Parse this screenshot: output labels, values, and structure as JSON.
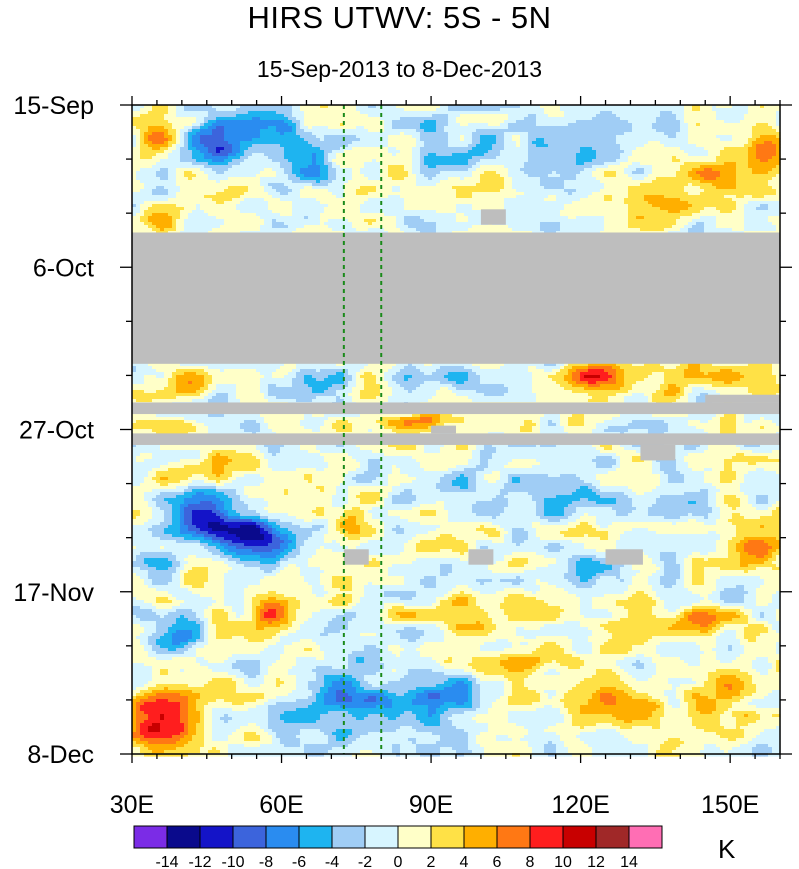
{
  "chart_data": {
    "type": "heatmap",
    "title": "HIRS UTWV: 5S - 5N",
    "subtitle": "15-Sep-2013 to 8-Dec-2013",
    "xlabel": "",
    "ylabel": "",
    "x_range": [
      30,
      160
    ],
    "x_ticks": [
      30,
      60,
      90,
      120,
      150
    ],
    "x_tick_labels": [
      "30E",
      "60E",
      "90E",
      "120E",
      "150E"
    ],
    "y_range_days": [
      0,
      84
    ],
    "y_ticks_days": [
      0,
      21,
      42,
      63,
      84
    ],
    "y_tick_labels": [
      "15-Sep",
      "6-Oct",
      "27-Oct",
      "17-Nov",
      "8-Dec"
    ],
    "y_direction": "time increases downward",
    "colorbar": {
      "units": "K",
      "levels": [
        -14,
        -12,
        -10,
        -8,
        -6,
        -4,
        -2,
        0,
        2,
        4,
        6,
        8,
        10,
        12,
        14
      ],
      "level_labels": [
        "-14",
        "-12",
        "-10",
        "-8",
        "-6",
        "-4",
        "-2",
        "0",
        "2",
        "4",
        "6",
        "8",
        "10",
        "12",
        "14"
      ],
      "colors": [
        "#7b2ce6",
        "#0a0a8c",
        "#1414c8",
        "#3c64dc",
        "#2a8cf0",
        "#1eb4f0",
        "#a0cdf5",
        "#d7f5ff",
        "#ffffc8",
        "#ffe146",
        "#ffaf00",
        "#ff7814",
        "#ff1e1e",
        "#c80000",
        "#a02828",
        "#ff6eb4"
      ]
    },
    "reference_lines_lon": [
      72.5,
      80
    ],
    "reference_line_color": "#1a8a1a",
    "missing_color": "#bebebe",
    "missing_regions": [
      {
        "lon": [
          30,
          160
        ],
        "day": [
          16.5,
          33.5
        ]
      },
      {
        "lon": [
          30,
          160
        ],
        "day": [
          38.5,
          40.0
        ]
      },
      {
        "lon": [
          145,
          160
        ],
        "day": [
          37.5,
          38.5
        ]
      },
      {
        "lon": [
          30,
          160
        ],
        "day": [
          42.5,
          44.0
        ]
      },
      {
        "lon": [
          90,
          95
        ],
        "day": [
          41.5,
          42.5
        ]
      },
      {
        "lon": [
          132,
          139
        ],
        "day": [
          44.0,
          46.0
        ]
      },
      {
        "lon": [
          100,
          105
        ],
        "day": [
          13.5,
          15.5
        ]
      },
      {
        "lon": [
          72.5,
          77.5
        ],
        "day": [
          57.5,
          59.5
        ]
      },
      {
        "lon": [
          97.5,
          102.5
        ],
        "day": [
          57.5,
          59.5
        ]
      },
      {
        "lon": [
          125,
          132.5
        ],
        "day": [
          57.5,
          59.5
        ]
      }
    ],
    "anomaly_features": [
      {
        "lon": 47,
        "day": 5,
        "value": -7,
        "lon_w": 7,
        "day_w": 3
      },
      {
        "lon": 58,
        "day": 3,
        "value": -5,
        "lon_w": 8,
        "day_w": 3
      },
      {
        "lon": 66,
        "day": 8,
        "value": -4,
        "lon_w": 6,
        "day_w": 4
      },
      {
        "lon": 95,
        "day": 4,
        "value": -3,
        "lon_w": 10,
        "day_w": 4
      },
      {
        "lon": 112,
        "day": 6,
        "value": -5,
        "lon_w": 8,
        "day_w": 3
      },
      {
        "lon": 128,
        "day": 4,
        "value": -4,
        "lon_w": 8,
        "day_w": 3
      },
      {
        "lon": 157,
        "day": 6,
        "value": 9,
        "lon_w": 5,
        "day_w": 3
      },
      {
        "lon": 148,
        "day": 9,
        "value": 6,
        "lon_w": 7,
        "day_w": 3
      },
      {
        "lon": 136,
        "day": 12,
        "value": 4,
        "lon_w": 8,
        "day_w": 3
      },
      {
        "lon": 35,
        "day": 4,
        "value": 5,
        "lon_w": 4,
        "day_w": 4
      },
      {
        "lon": 36,
        "day": 15,
        "value": 4,
        "lon_w": 5,
        "day_w": 2
      },
      {
        "lon": 95,
        "day": 11,
        "value": 3,
        "lon_w": 10,
        "day_w": 2
      },
      {
        "lon": 123,
        "day": 35,
        "value": 9,
        "lon_w": 6,
        "day_w": 2
      },
      {
        "lon": 140,
        "day": 35,
        "value": 5,
        "lon_w": 9,
        "day_w": 2
      },
      {
        "lon": 40,
        "day": 36,
        "value": 4,
        "lon_w": 6,
        "day_w": 2
      },
      {
        "lon": 65,
        "day": 36,
        "value": -4,
        "lon_w": 8,
        "day_w": 2
      },
      {
        "lon": 95,
        "day": 35,
        "value": -3,
        "lon_w": 10,
        "day_w": 2
      },
      {
        "lon": 85,
        "day": 41,
        "value": 6,
        "lon_w": 9,
        "day_w": 1
      },
      {
        "lon": 45,
        "day": 47,
        "value": 4,
        "lon_w": 10,
        "day_w": 2
      },
      {
        "lon": 45,
        "day": 53,
        "value": -10,
        "lon_w": 6,
        "day_w": 3
      },
      {
        "lon": 55,
        "day": 56,
        "value": -12,
        "lon_w": 8,
        "day_w": 3
      },
      {
        "lon": 37,
        "day": 60,
        "value": -5,
        "lon_w": 5,
        "day_w": 3
      },
      {
        "lon": 74,
        "day": 54,
        "value": 5,
        "lon_w": 3,
        "day_w": 2
      },
      {
        "lon": 100,
        "day": 50,
        "value": -4,
        "lon_w": 10,
        "day_w": 3
      },
      {
        "lon": 125,
        "day": 52,
        "value": -3,
        "lon_w": 12,
        "day_w": 3
      },
      {
        "lon": 155,
        "day": 56,
        "value": 5,
        "lon_w": 6,
        "day_w": 4
      },
      {
        "lon": 40,
        "day": 61,
        "value": 4,
        "lon_w": 8,
        "day_w": 2
      },
      {
        "lon": 58,
        "day": 66,
        "value": 9,
        "lon_w": 4,
        "day_w": 2
      },
      {
        "lon": 98,
        "day": 66,
        "value": 4,
        "lon_w": 12,
        "day_w": 2
      },
      {
        "lon": 140,
        "day": 67,
        "value": 5,
        "lon_w": 12,
        "day_w": 2
      },
      {
        "lon": 38,
        "day": 69,
        "value": -6,
        "lon_w": 6,
        "day_w": 2
      },
      {
        "lon": 75,
        "day": 78,
        "value": -6,
        "lon_w": 14,
        "day_w": 5
      },
      {
        "lon": 95,
        "day": 77,
        "value": -5,
        "lon_w": 8,
        "day_w": 3
      },
      {
        "lon": 36,
        "day": 79,
        "value": 10,
        "lon_w": 6,
        "day_w": 4
      },
      {
        "lon": 130,
        "day": 78,
        "value": 6,
        "lon_w": 10,
        "day_w": 3
      },
      {
        "lon": 150,
        "day": 76,
        "value": 4,
        "lon_w": 8,
        "day_w": 3
      },
      {
        "lon": 112,
        "day": 72,
        "value": 4,
        "lon_w": 8,
        "day_w": 2
      },
      {
        "lon": 120,
        "day": 61,
        "value": -4,
        "lon_w": 10,
        "day_w": 2
      }
    ]
  }
}
